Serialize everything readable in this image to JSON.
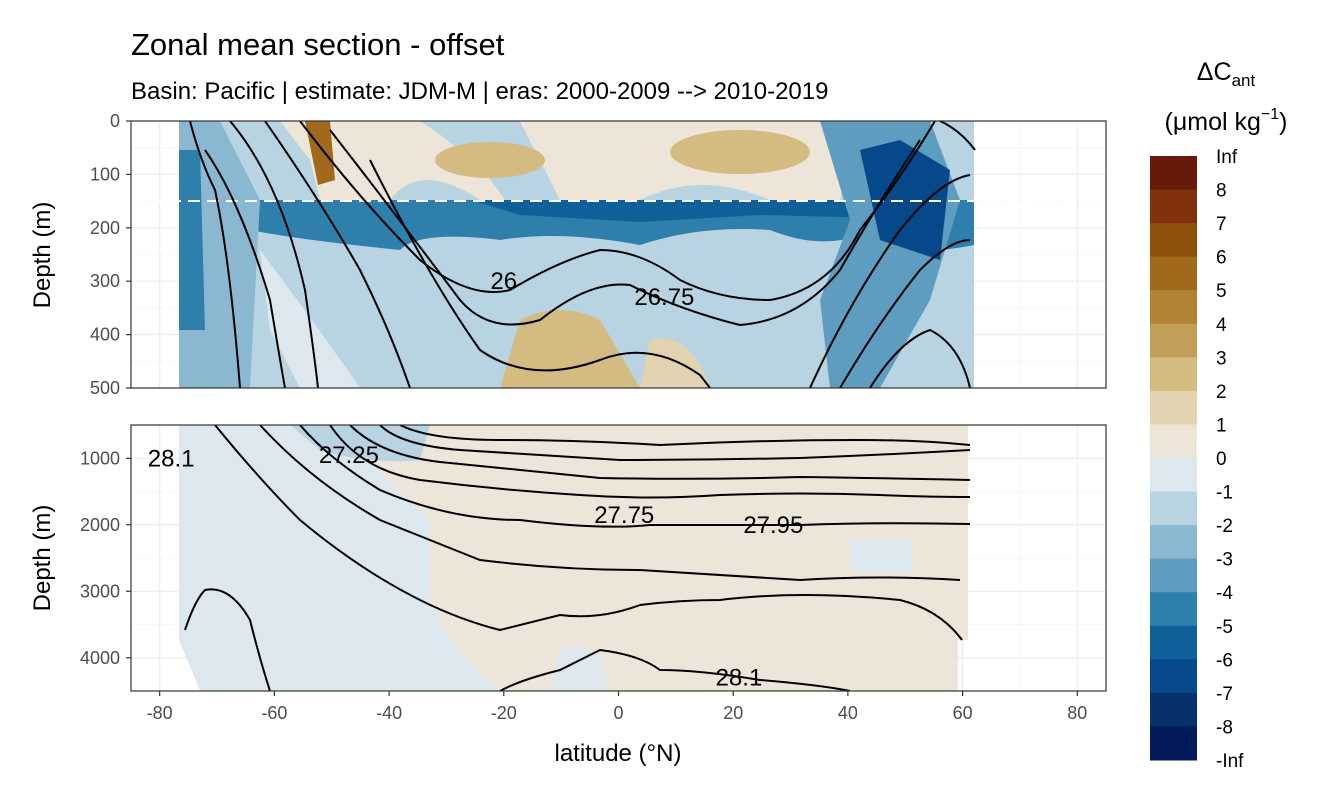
{
  "chart_data": {
    "type": "heatmap",
    "title": "Zonal mean section - offset",
    "subtitle": "Basin: Pacific | estimate: JDM-M | eras: 2000-2009 --> 2010-2019",
    "xlabel": "latitude (°N)",
    "ylabel": "Depth (m)",
    "xlim": [
      -85,
      85
    ],
    "x_ticks": [
      -80,
      -60,
      -40,
      -20,
      0,
      20,
      40,
      60,
      80
    ],
    "x_tick_labels": [
      "-80",
      "-60",
      "-40",
      "-20",
      "0",
      "20",
      "40",
      "60",
      "80"
    ],
    "grid": true,
    "panels": [
      {
        "name": "upper",
        "ylim": [
          500,
          0
        ],
        "y_ticks": [
          0,
          100,
          200,
          300,
          400,
          500
        ],
        "y_tick_labels": [
          "0",
          "100",
          "200",
          "300",
          "400",
          "500"
        ],
        "reference_line_depth": 150,
        "contour_labels": [
          "26",
          "26.75"
        ]
      },
      {
        "name": "lower",
        "ylim": [
          4500,
          500
        ],
        "y_ticks": [
          1000,
          2000,
          3000,
          4000
        ],
        "y_tick_labels": [
          "1000",
          "2000",
          "3000",
          "4000"
        ],
        "contour_labels": [
          "28.1",
          "27.25",
          "27.75",
          "27.95",
          "28.1"
        ]
      }
    ],
    "legend": {
      "title": "ΔC",
      "title_sub": "ant",
      "unit_prefix": "(μmol kg",
      "unit_sup": "−1",
      "unit_suffix": ")",
      "placement": "right",
      "labels": [
        "Inf",
        "8",
        "7",
        "6",
        "5",
        "4",
        "3",
        "2",
        "1",
        "0",
        "-1",
        "-2",
        "-3",
        "-4",
        "-5",
        "-6",
        "-7",
        "-8",
        "-Inf"
      ],
      "colors": [
        "#67190a",
        "#7f320b",
        "#8e4f0c",
        "#a0691b",
        "#b28335",
        "#c29f58",
        "#d3bb82",
        "#e2d2af",
        "#ede6d8",
        "#dde8ee",
        "#b8d4e3",
        "#8bb8d1",
        "#5e9cc0",
        "#2f7fac",
        "#0f6099",
        "#06498a",
        "#08306b",
        "#031b5c"
      ]
    },
    "ranges": {
      "depth_upper_m": [
        0,
        500
      ],
      "depth_lower_m": [
        500,
        4500
      ]
    }
  }
}
